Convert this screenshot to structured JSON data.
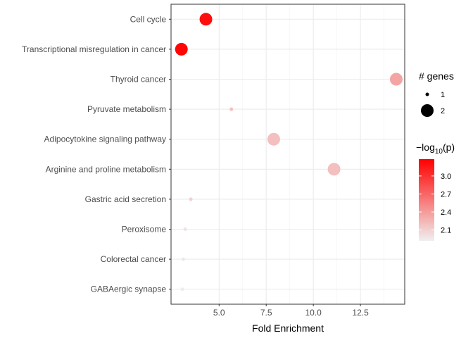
{
  "chart_data": {
    "type": "scatter",
    "title": "",
    "xlabel": "Fold Enrichment",
    "ylabel": "",
    "xlim": [
      2.45,
      14.85
    ],
    "xticks": [
      5.0,
      7.5,
      10.0,
      12.5
    ],
    "xtick_labels": [
      "5.0",
      "7.5",
      "10.0",
      "12.5"
    ],
    "grid": true,
    "legend_position": "right",
    "categories": [
      "Cell cycle",
      "Transcriptional misregulation in cancer",
      "Thyroid cancer",
      "Pyruvate metabolism",
      "Adipocytokine signaling pathway",
      "Arginine and proline metabolism",
      "Gastric acid secretion",
      "Peroxisome",
      "Colorectal cancer",
      "GABAergic synapse"
    ],
    "points": [
      {
        "term": "Cell cycle",
        "fold_enrichment": 4.3,
        "genes": 2,
        "neg_log10_p": 3.2
      },
      {
        "term": "Transcriptional misregulation in cancer",
        "fold_enrichment": 3.0,
        "genes": 2,
        "neg_log10_p": 3.25
      },
      {
        "term": "Thyroid cancer",
        "fold_enrichment": 14.4,
        "genes": 2,
        "neg_log10_p": 2.35
      },
      {
        "term": "Pyruvate metabolism",
        "fold_enrichment": 5.65,
        "genes": 1,
        "neg_log10_p": 2.2
      },
      {
        "term": "Adipocytokine signaling pathway",
        "fold_enrichment": 7.9,
        "genes": 2,
        "neg_log10_p": 2.2
      },
      {
        "term": "Arginine and proline metabolism",
        "fold_enrichment": 11.1,
        "genes": 2,
        "neg_log10_p": 2.2
      },
      {
        "term": "Gastric acid secretion",
        "fold_enrichment": 3.5,
        "genes": 1,
        "neg_log10_p": 2.1
      },
      {
        "term": "Peroxisome",
        "fold_enrichment": 3.2,
        "genes": 1,
        "neg_log10_p": 2.0
      },
      {
        "term": "Colorectal cancer",
        "fold_enrichment": 3.1,
        "genes": 1,
        "neg_log10_p": 1.97
      },
      {
        "term": "GABAergic synapse",
        "fold_enrichment": 3.05,
        "genes": 1,
        "neg_log10_p": 1.95
      }
    ],
    "size_legend": {
      "title": "# genes",
      "entries": [
        {
          "label": "1",
          "value": 1
        },
        {
          "label": "2",
          "value": 2
        }
      ]
    },
    "color_legend": {
      "title_prefix": "−log",
      "title_sub": "10",
      "title_suffix": "(p)",
      "min": 1.92,
      "max": 3.28,
      "ticks": [
        3.0,
        2.7,
        2.4,
        2.1
      ],
      "tick_labels": [
        "3.0",
        "2.7",
        "2.4",
        "2.1"
      ],
      "low_color": "#f0f0f0",
      "high_color": "#ff0000"
    }
  }
}
